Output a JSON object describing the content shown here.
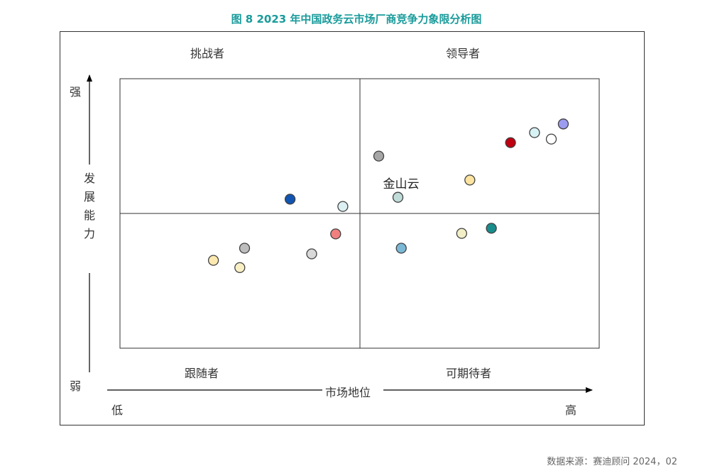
{
  "title": "图 8  2023 年中国政务云市场厂商竞争力象限分析图",
  "source": "数据来源：赛迪顾问  2024，02",
  "chart_data": {
    "type": "scatter",
    "quadrants": {
      "top_left": "挑战者",
      "top_right": "领导者",
      "bottom_left": "跟随者",
      "bottom_right": "可期待者"
    },
    "y_axis": {
      "label": "发展能力",
      "high": "强",
      "low": "弱"
    },
    "x_axis": {
      "label": "市场地位",
      "low": "低",
      "high": "高"
    },
    "xlim": [
      0,
      100
    ],
    "ylim": [
      0,
      100
    ],
    "points": [
      {
        "x": 19.5,
        "y": 32.6,
        "color": "#fde9b0"
      },
      {
        "x": 25.0,
        "y": 29.9,
        "color": "#f8efc4"
      },
      {
        "x": 26.0,
        "y": 37.1,
        "color": "#bdbdbd"
      },
      {
        "x": 35.5,
        "y": 55.3,
        "color": "#1155b3"
      },
      {
        "x": 40.0,
        "y": 35.0,
        "color": "#d9d9d9"
      },
      {
        "x": 45.0,
        "y": 42.4,
        "color": "#f08080"
      },
      {
        "x": 46.5,
        "y": 52.6,
        "color": "#dcf0f2"
      },
      {
        "x": 54.0,
        "y": 71.3,
        "color": "#a6a6a6"
      },
      {
        "x": 58.0,
        "y": 56.0,
        "color": "#bfdcd9",
        "label": "金山云"
      },
      {
        "x": 58.7,
        "y": 37.1,
        "color": "#7ab8d6"
      },
      {
        "x": 71.3,
        "y": 42.6,
        "color": "#f2efc6"
      },
      {
        "x": 73.0,
        "y": 62.4,
        "color": "#fde3a0"
      },
      {
        "x": 77.5,
        "y": 44.5,
        "color": "#1a8c8c"
      },
      {
        "x": 81.5,
        "y": 76.3,
        "color": "#c00010"
      },
      {
        "x": 86.5,
        "y": 80.0,
        "color": "#d7f2f4"
      },
      {
        "x": 90.0,
        "y": 77.6,
        "color": "#ffffff"
      },
      {
        "x": 92.5,
        "y": 83.2,
        "color": "#9b9bf0"
      }
    ]
  }
}
